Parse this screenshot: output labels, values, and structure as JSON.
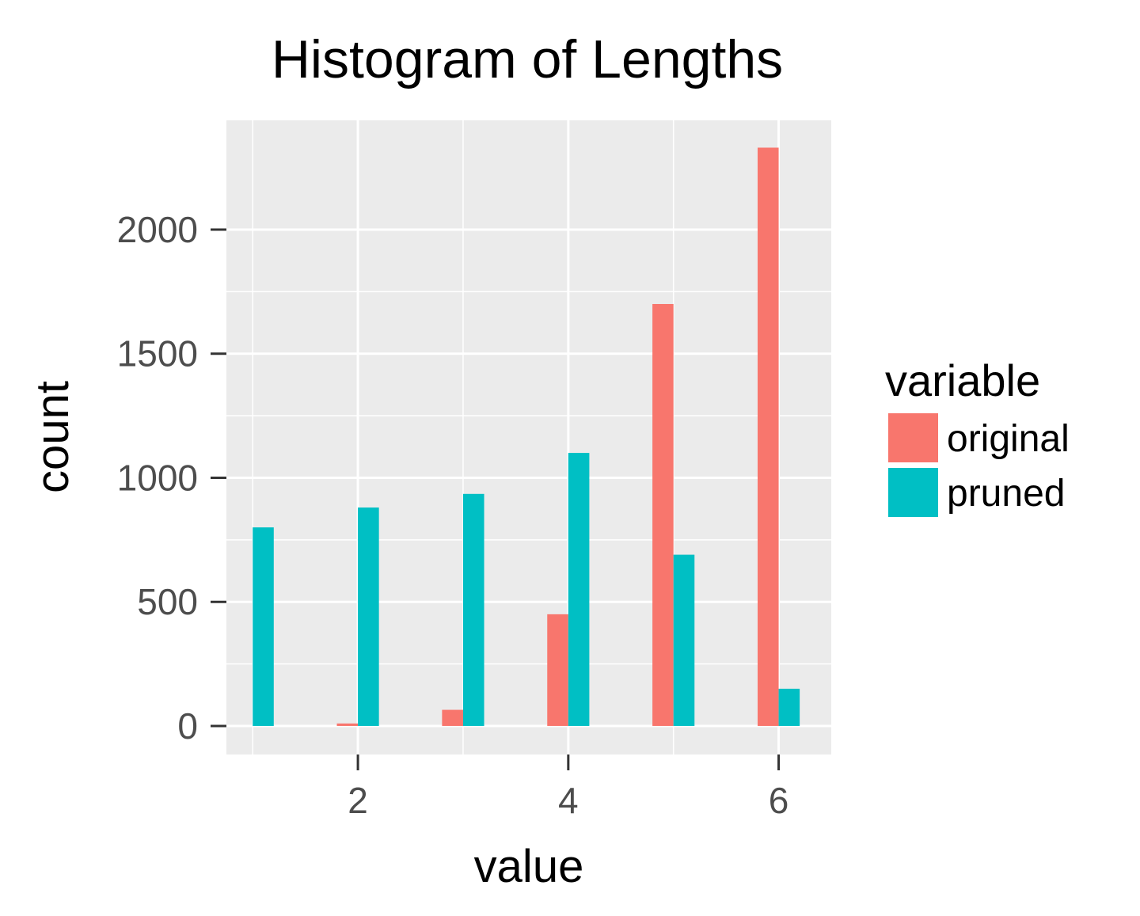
{
  "chart_data": {
    "type": "bar",
    "title": "Histogram of Lengths",
    "xlabel": "value",
    "ylabel": "count",
    "x": [
      1,
      2,
      3,
      4,
      5,
      6
    ],
    "xticks": [
      2,
      4,
      6
    ],
    "yticks": [
      0,
      500,
      1000,
      1500,
      2000
    ],
    "xlim": [
      0.75,
      6.5
    ],
    "ylim": [
      -115,
      2440
    ],
    "grid": true,
    "legend": {
      "title": "variable",
      "position": "right"
    },
    "series": [
      {
        "name": "original",
        "color": "#F8766D",
        "values": [
          0,
          10,
          65,
          450,
          1700,
          2330
        ]
      },
      {
        "name": "pruned",
        "color": "#00BFC4",
        "values": [
          800,
          880,
          935,
          1100,
          690,
          150
        ]
      }
    ]
  },
  "colors": {
    "panel_background": "#EBEBEB",
    "grid": "#FFFFFF",
    "tick_text": "#4D4D4D",
    "tick_mark": "#333333"
  }
}
